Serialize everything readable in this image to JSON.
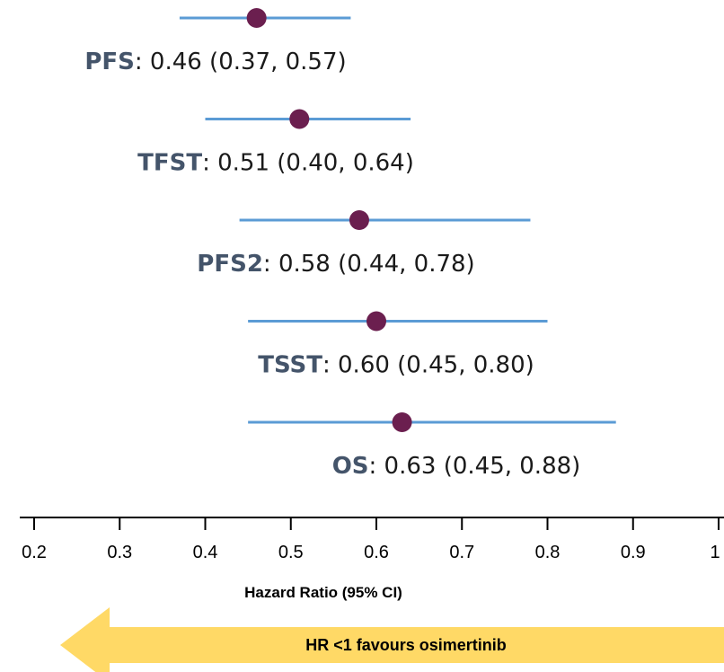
{
  "chart_data": {
    "type": "forest",
    "xlabel": "Hazard Ratio (95% CI)",
    "xlim": [
      0.2,
      1
    ],
    "xticks": [
      "0.2",
      "0.3",
      "0.4",
      "0.5",
      "0.6",
      "0.7",
      "0.8",
      "0.9",
      "1"
    ],
    "series": [
      {
        "name": "PFS",
        "hr": 0.46,
        "lower": 0.37,
        "upper": 0.57,
        "label_value": "0.46 (0.37, 0.57)"
      },
      {
        "name": "TFST",
        "hr": 0.51,
        "lower": 0.4,
        "upper": 0.64,
        "label_value": "0.51 (0.40, 0.64)"
      },
      {
        "name": "PFS2",
        "hr": 0.58,
        "lower": 0.44,
        "upper": 0.78,
        "label_value": "0.58 (0.44, 0.78)"
      },
      {
        "name": "TSST",
        "hr": 0.6,
        "lower": 0.45,
        "upper": 0.8,
        "label_value": "0.60 (0.45, 0.80)"
      },
      {
        "name": "OS",
        "hr": 0.63,
        "lower": 0.45,
        "upper": 0.88,
        "label_value": "0.63 (0.45, 0.88)"
      }
    ],
    "arrow_label": "HR <1 favours osimertinib",
    "colors": {
      "ci_line": "#5b9bd5",
      "point": "#6b1f4f",
      "endpoint_name": "#44546a",
      "arrow_fill": "#ffd966"
    }
  }
}
